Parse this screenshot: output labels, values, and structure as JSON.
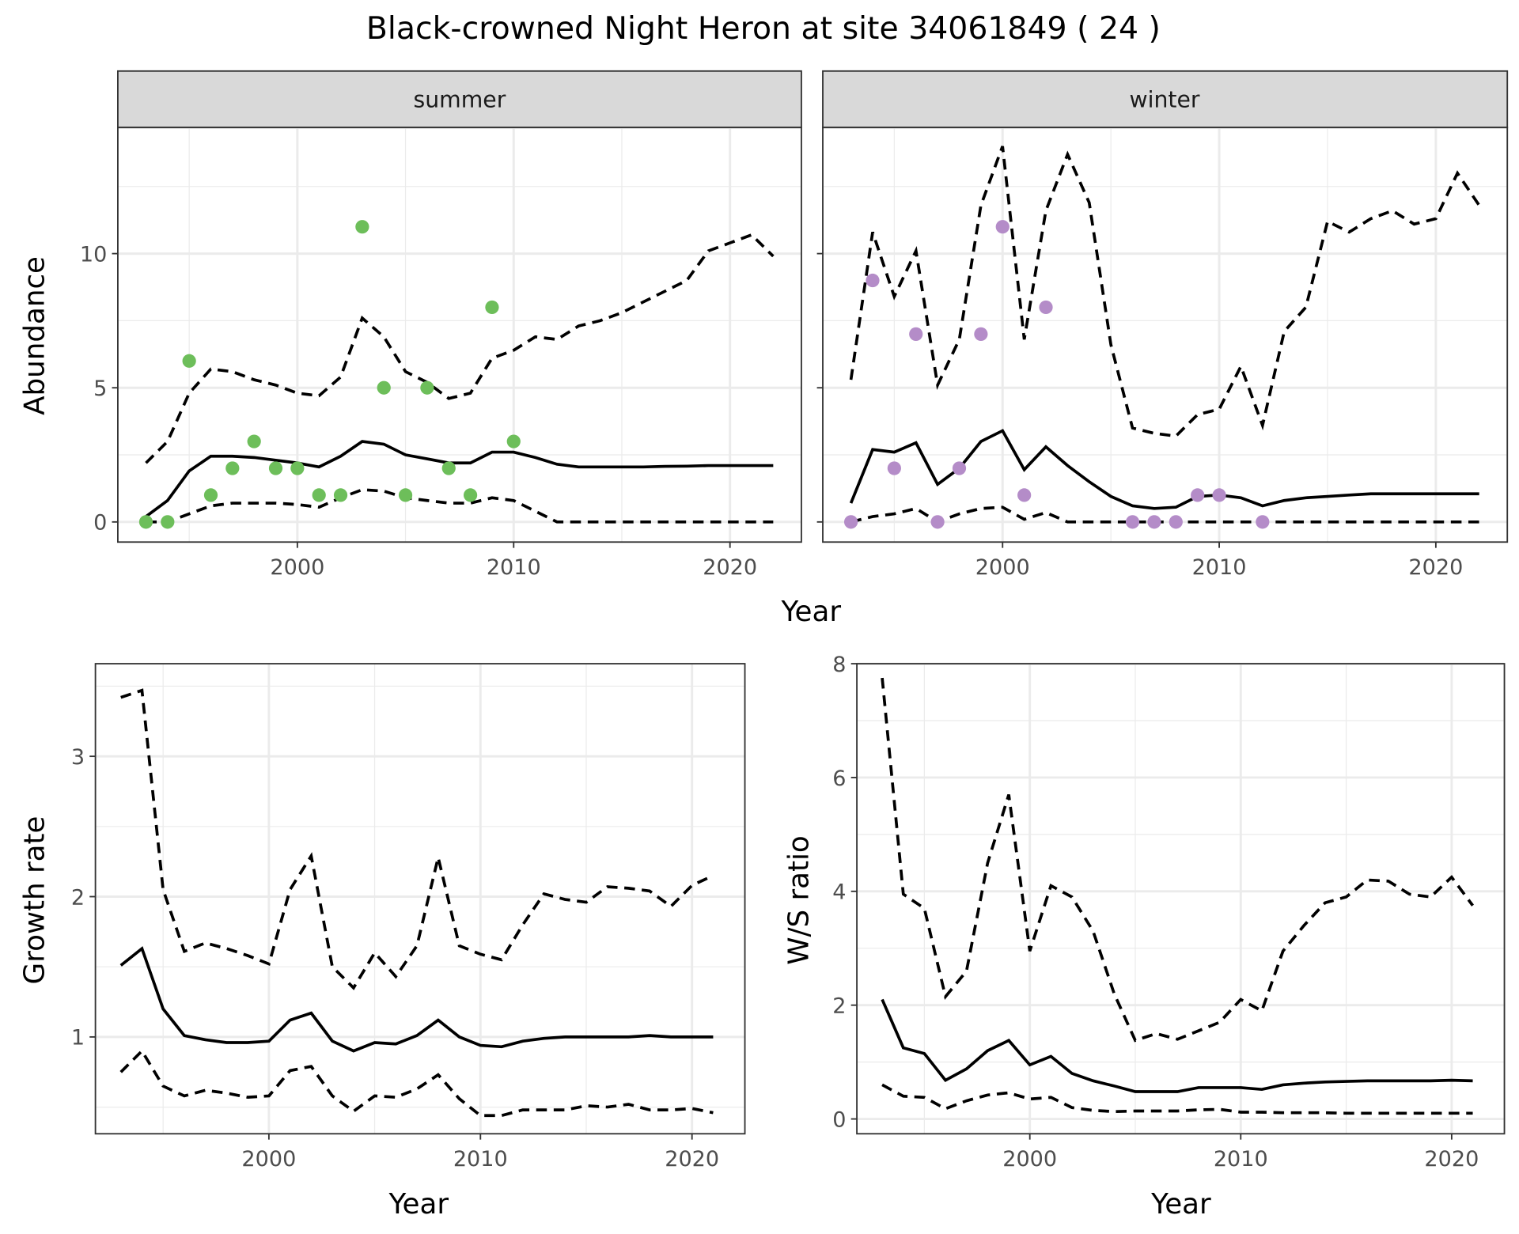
{
  "title": "Black-crowned Night Heron at site 34061849 ( 24 )",
  "colors": {
    "summer_points": "#6DBE5A",
    "winter_points": "#B48CC8",
    "lines": "#000000"
  },
  "chart_data": [
    {
      "type": "line",
      "facet": "summer",
      "xlabel": "Year",
      "ylabel": "Abundance",
      "xlim": [
        1991.7,
        2023.3
      ],
      "ylim": [
        -0.75,
        14.7
      ],
      "xticks": [
        "2000",
        "2010",
        "2020"
      ],
      "yticks": [
        "0",
        "5",
        "10"
      ],
      "grid": true,
      "x": [
        1993,
        1994,
        1995,
        1996,
        1997,
        1998,
        1999,
        2000,
        2001,
        2002,
        2003,
        2004,
        2005,
        2006,
        2007,
        2008,
        2009,
        2010,
        2011,
        2012,
        2013,
        2014,
        2015,
        2016,
        2017,
        2018,
        2019,
        2020,
        2021,
        2022
      ],
      "series": [
        {
          "style": "solid",
          "values": [
            0.2,
            0.8,
            1.9,
            2.45,
            2.45,
            2.4,
            2.3,
            2.2,
            2.05,
            2.45,
            3.0,
            2.9,
            2.5,
            2.35,
            2.2,
            2.2,
            2.6,
            2.6,
            2.4,
            2.15,
            2.05,
            2.05,
            2.05,
            2.05,
            2.07,
            2.08,
            2.1,
            2.1,
            2.1,
            2.1
          ]
        },
        {
          "style": "dashed",
          "values": [
            2.2,
            3.0,
            4.8,
            5.7,
            5.6,
            5.3,
            5.1,
            4.8,
            4.7,
            5.4,
            7.6,
            6.9,
            5.6,
            5.2,
            4.6,
            4.8,
            6.1,
            6.4,
            6.9,
            6.8,
            7.3,
            7.5,
            7.8,
            8.2,
            8.6,
            9.0,
            10.1,
            10.4,
            10.7,
            9.9
          ]
        },
        {
          "style": "dashed",
          "values": [
            0,
            0,
            0.3,
            0.6,
            0.7,
            0.7,
            0.7,
            0.65,
            0.55,
            0.9,
            1.2,
            1.15,
            0.9,
            0.8,
            0.7,
            0.7,
            0.9,
            0.8,
            0.4,
            0,
            0,
            0,
            0,
            0,
            0,
            0,
            0,
            0,
            0,
            0
          ]
        }
      ],
      "points": {
        "x": [
          1993,
          1994,
          1995,
          1996,
          1997,
          1998,
          1999,
          2000,
          2001,
          2002,
          2003,
          2004,
          2005,
          2006,
          2007,
          2008,
          2009,
          2010
        ],
        "y": [
          0,
          0,
          6,
          1,
          2,
          3,
          2,
          2,
          1,
          1,
          11,
          5,
          1,
          5,
          2,
          1,
          8,
          3
        ]
      }
    },
    {
      "type": "line",
      "facet": "winter",
      "xlabel": "Year",
      "ylabel": "Abundance",
      "xlim": [
        1991.7,
        2023.3
      ],
      "ylim": [
        -0.75,
        14.7
      ],
      "xticks": [
        "2000",
        "2010",
        "2020"
      ],
      "yticks": [],
      "grid": true,
      "x": [
        1993,
        1994,
        1995,
        1996,
        1997,
        1998,
        1999,
        2000,
        2001,
        2002,
        2003,
        2004,
        2005,
        2006,
        2007,
        2008,
        2009,
        2010,
        2011,
        2012,
        2013,
        2014,
        2015,
        2016,
        2017,
        2018,
        2019,
        2020,
        2021,
        2022
      ],
      "series": [
        {
          "style": "solid",
          "values": [
            0.7,
            2.7,
            2.6,
            2.95,
            1.4,
            2.0,
            3.0,
            3.4,
            1.95,
            2.8,
            2.1,
            1.5,
            0.95,
            0.6,
            0.5,
            0.55,
            0.95,
            1.0,
            0.9,
            0.6,
            0.8,
            0.9,
            0.95,
            1.0,
            1.05,
            1.05,
            1.05,
            1.05,
            1.05,
            1.05
          ]
        },
        {
          "style": "dashed",
          "values": [
            5.3,
            10.8,
            8.4,
            10.1,
            5.1,
            6.8,
            11.8,
            14.0,
            6.8,
            11.6,
            13.7,
            11.9,
            6.6,
            3.5,
            3.3,
            3.2,
            4.0,
            4.2,
            5.8,
            3.6,
            7.1,
            8.0,
            11.2,
            10.8,
            11.3,
            11.6,
            11.1,
            11.3,
            13.0,
            11.8
          ]
        },
        {
          "style": "dashed",
          "values": [
            0,
            0.2,
            0.3,
            0.5,
            0,
            0.3,
            0.5,
            0.55,
            0.1,
            0.35,
            0,
            0,
            0,
            0,
            0,
            0,
            0,
            0,
            0,
            0,
            0,
            0,
            0,
            0,
            0,
            0,
            0,
            0,
            0,
            0
          ]
        }
      ],
      "points": {
        "x": [
          1993,
          1994,
          1995,
          1996,
          1997,
          1998,
          1999,
          2000,
          2001,
          2002,
          2006,
          2007,
          2008,
          2009,
          2010,
          2012
        ],
        "y": [
          0,
          9,
          2,
          7,
          0,
          2,
          7,
          11,
          1,
          8,
          0,
          0,
          0,
          1,
          1,
          0
        ]
      }
    },
    {
      "type": "line",
      "xlabel": "Year",
      "ylabel": "Growth rate",
      "xlim": [
        1991.8,
        2022.5
      ],
      "ylim": [
        0.31,
        3.66
      ],
      "xticks": [
        "2000",
        "2010",
        "2020"
      ],
      "yticks": [
        "1",
        "2",
        "3"
      ],
      "grid": true,
      "x": [
        1993,
        1994,
        1995,
        1996,
        1997,
        1998,
        1999,
        2000,
        2001,
        2002,
        2003,
        2004,
        2005,
        2006,
        2007,
        2008,
        2009,
        2010,
        2011,
        2012,
        2013,
        2014,
        2015,
        2016,
        2017,
        2018,
        2019,
        2020,
        2021
      ],
      "series": [
        {
          "style": "solid",
          "values": [
            1.51,
            1.63,
            1.2,
            1.01,
            0.98,
            0.96,
            0.96,
            0.97,
            1.12,
            1.17,
            0.97,
            0.9,
            0.96,
            0.95,
            1.01,
            1.12,
            1.0,
            0.94,
            0.93,
            0.97,
            0.99,
            1.0,
            1.0,
            1.0,
            1.0,
            1.01,
            1.0,
            1.0,
            1.0
          ]
        },
        {
          "style": "dashed",
          "values": [
            3.42,
            3.47,
            2.05,
            1.61,
            1.67,
            1.63,
            1.58,
            1.52,
            2.05,
            2.29,
            1.5,
            1.35,
            1.6,
            1.43,
            1.65,
            2.28,
            1.65,
            1.59,
            1.55,
            1.8,
            2.02,
            1.98,
            1.96,
            2.07,
            2.06,
            2.04,
            1.93,
            2.08,
            2.15
          ]
        },
        {
          "style": "dashed",
          "values": [
            0.75,
            0.9,
            0.65,
            0.58,
            0.62,
            0.6,
            0.57,
            0.58,
            0.76,
            0.79,
            0.58,
            0.47,
            0.58,
            0.57,
            0.63,
            0.73,
            0.56,
            0.44,
            0.44,
            0.48,
            0.48,
            0.48,
            0.51,
            0.5,
            0.52,
            0.48,
            0.48,
            0.49,
            0.46
          ]
        }
      ]
    },
    {
      "type": "line",
      "xlabel": "Year",
      "ylabel": "W/S ratio",
      "xlim": [
        1991.8,
        2022.5
      ],
      "ylim": [
        -0.26,
        8.0
      ],
      "xticks": [
        "2000",
        "2010",
        "2020"
      ],
      "yticks": [
        "0",
        "2",
        "4",
        "6",
        "8"
      ],
      "grid": true,
      "x": [
        1993,
        1994,
        1995,
        1996,
        1997,
        1998,
        1999,
        2000,
        2001,
        2002,
        2003,
        2004,
        2005,
        2006,
        2007,
        2008,
        2009,
        2010,
        2011,
        2012,
        2013,
        2014,
        2015,
        2016,
        2017,
        2018,
        2019,
        2020,
        2021
      ],
      "series": [
        {
          "style": "solid",
          "values": [
            2.1,
            1.25,
            1.15,
            0.68,
            0.88,
            1.2,
            1.38,
            0.95,
            1.1,
            0.8,
            0.67,
            0.58,
            0.48,
            0.48,
            0.48,
            0.55,
            0.55,
            0.55,
            0.52,
            0.6,
            0.63,
            0.65,
            0.66,
            0.67,
            0.67,
            0.67,
            0.67,
            0.68,
            0.67
          ]
        },
        {
          "style": "dashed",
          "values": [
            7.75,
            3.95,
            3.7,
            2.15,
            2.6,
            4.5,
            5.7,
            2.95,
            4.1,
            3.9,
            3.3,
            2.2,
            1.38,
            1.5,
            1.4,
            1.55,
            1.7,
            2.1,
            1.9,
            2.95,
            3.4,
            3.8,
            3.9,
            4.2,
            4.18,
            3.95,
            3.9,
            4.25,
            3.75
          ]
        },
        {
          "style": "dashed",
          "values": [
            0.6,
            0.4,
            0.38,
            0.18,
            0.32,
            0.42,
            0.46,
            0.35,
            0.38,
            0.2,
            0.15,
            0.13,
            0.14,
            0.14,
            0.14,
            0.16,
            0.17,
            0.12,
            0.12,
            0.11,
            0.11,
            0.11,
            0.1,
            0.1,
            0.1,
            0.1,
            0.1,
            0.1,
            0.1
          ]
        }
      ]
    }
  ]
}
